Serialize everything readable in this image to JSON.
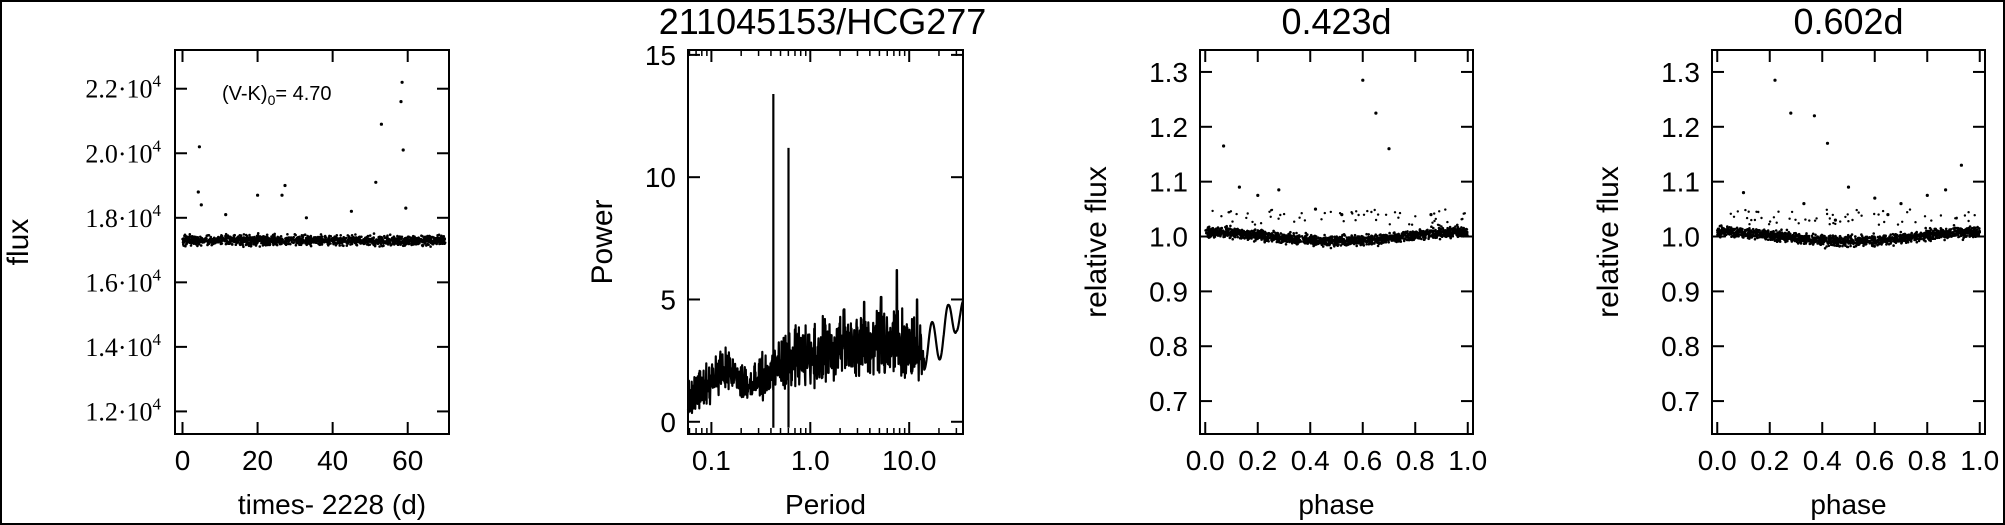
{
  "figure": {
    "background": "#ffffff",
    "ink": "#000000"
  },
  "chart_data": [
    {
      "type": "scatter",
      "title": "",
      "annotation": {
        "base": "(V-K)",
        "sub": "0",
        "rest": "= 4.70"
      },
      "xlabel": "times- 2228 (d)",
      "ylabel": "flux",
      "xlim": [
        -2,
        71
      ],
      "ylim": [
        11300,
        23200
      ],
      "xticks": [
        0,
        20,
        40,
        60
      ],
      "xtick_labels": [
        "0",
        "20",
        "40",
        "60"
      ],
      "yticks": [
        12000,
        14000,
        16000,
        18000,
        20000,
        22000
      ],
      "ytick_labels": [
        {
          "mant": "1.2·10",
          "exp": "4"
        },
        {
          "mant": "1.4·10",
          "exp": "4"
        },
        {
          "mant": "1.6·10",
          "exp": "4"
        },
        {
          "mant": "1.8·10",
          "exp": "4"
        },
        {
          "mant": "2.0·10",
          "exp": "4"
        },
        {
          "mant": "2.2·10",
          "exp": "4"
        }
      ],
      "baseline": {
        "x_range": [
          0,
          70
        ],
        "level": 17300,
        "scatter": 150
      },
      "outliers": [
        {
          "x": 4.5,
          "y": 20200
        },
        {
          "x": 4.2,
          "y": 18800
        },
        {
          "x": 5.0,
          "y": 18400
        },
        {
          "x": 11.5,
          "y": 18100
        },
        {
          "x": 20.0,
          "y": 18700
        },
        {
          "x": 26.5,
          "y": 18700
        },
        {
          "x": 27.3,
          "y": 19000
        },
        {
          "x": 45.0,
          "y": 18200
        },
        {
          "x": 51.5,
          "y": 19100
        },
        {
          "x": 58.5,
          "y": 22200
        },
        {
          "x": 58.2,
          "y": 21600
        },
        {
          "x": 58.8,
          "y": 20100
        },
        {
          "x": 53.0,
          "y": 20900
        },
        {
          "x": 59.5,
          "y": 18300
        },
        {
          "x": 33.0,
          "y": 18000
        }
      ]
    },
    {
      "type": "line",
      "title": "211045153/HCG277",
      "xlabel": "Period",
      "ylabel": "Power",
      "xscale": "log",
      "xlim": [
        0.058,
        35
      ],
      "ylim": [
        -0.5,
        15.2
      ],
      "xticks": [
        0.1,
        1.0,
        10.0
      ],
      "xtick_labels": [
        "0.1",
        "1.0",
        "10.0"
      ],
      "yticks": [
        0,
        5,
        10,
        15
      ],
      "ytick_labels": [
        "0",
        "5",
        "10",
        "15"
      ],
      "spikes": [
        {
          "x": 0.423,
          "y": 13.4
        },
        {
          "x": 0.602,
          "y": 11.2
        }
      ],
      "envelope": [
        {
          "x": 0.058,
          "y": 0.2
        },
        {
          "x": 0.08,
          "y": 0.8
        },
        {
          "x": 0.1,
          "y": 1.5
        },
        {
          "x": 0.13,
          "y": 2.0
        },
        {
          "x": 0.18,
          "y": 1.6
        },
        {
          "x": 0.25,
          "y": 1.0
        },
        {
          "x": 0.35,
          "y": 1.5
        },
        {
          "x": 0.5,
          "y": 2.2
        },
        {
          "x": 0.7,
          "y": 2.5
        },
        {
          "x": 1.0,
          "y": 2.8
        },
        {
          "x": 2.0,
          "y": 3.1
        },
        {
          "x": 4.0,
          "y": 3.4
        },
        {
          "x": 7.0,
          "y": 3.8
        },
        {
          "x": 10.0,
          "y": 3.2
        },
        {
          "x": 15.0,
          "y": 3.0
        },
        {
          "x": 20.0,
          "y": 3.4
        },
        {
          "x": 25.0,
          "y": 3.9
        },
        {
          "x": 30.0,
          "y": 4.6
        },
        {
          "x": 35.0,
          "y": 4.1
        }
      ],
      "peaks": [
        {
          "x": 7.5,
          "y": 6.2
        },
        {
          "x": 5.2,
          "y": 5.1
        },
        {
          "x": 3.5,
          "y": 4.9
        },
        {
          "x": 2.2,
          "y": 4.6
        },
        {
          "x": 12.0,
          "y": 5.0
        },
        {
          "x": 0.12,
          "y": 2.5
        },
        {
          "x": 0.72,
          "y": 3.3
        }
      ]
    },
    {
      "type": "scatter",
      "title": "0.423d",
      "xlabel": "phase",
      "ylabel": "relative flux",
      "xlim": [
        -0.02,
        1.02
      ],
      "ylim": [
        0.64,
        1.34
      ],
      "xticks": [
        0.0,
        0.2,
        0.4,
        0.6,
        0.8,
        1.0
      ],
      "xtick_labels": [
        "0.0",
        "0.2",
        "0.4",
        "0.6",
        "0.8",
        "1.0"
      ],
      "yticks": [
        0.7,
        0.8,
        0.9,
        1.0,
        1.1,
        1.2,
        1.3
      ],
      "ytick_labels": [
        "0.7",
        "0.8",
        "0.9",
        "1.0",
        "1.1",
        "1.2",
        "1.3"
      ],
      "baseline": {
        "x_range": [
          0,
          1
        ],
        "level": 1.0,
        "amplitude": 0.012,
        "scatter": 0.009
      },
      "outliers": [
        {
          "x": 0.07,
          "y": 1.165
        },
        {
          "x": 0.13,
          "y": 1.09
        },
        {
          "x": 0.2,
          "y": 1.075
        },
        {
          "x": 0.28,
          "y": 1.085
        },
        {
          "x": 0.42,
          "y": 1.05
        },
        {
          "x": 0.6,
          "y": 1.285
        },
        {
          "x": 0.65,
          "y": 1.225
        },
        {
          "x": 0.7,
          "y": 1.16
        },
        {
          "x": 0.52,
          "y": 1.04
        },
        {
          "x": 0.86,
          "y": 1.04
        }
      ]
    },
    {
      "type": "scatter",
      "title": "0.602d",
      "xlabel": "phase",
      "ylabel": "relative flux",
      "xlim": [
        -0.02,
        1.02
      ],
      "ylim": [
        0.64,
        1.34
      ],
      "xticks": [
        0.0,
        0.2,
        0.4,
        0.6,
        0.8,
        1.0
      ],
      "xtick_labels": [
        "0.0",
        "0.2",
        "0.4",
        "0.6",
        "0.8",
        "1.0"
      ],
      "yticks": [
        0.7,
        0.8,
        0.9,
        1.0,
        1.1,
        1.2,
        1.3
      ],
      "ytick_labels": [
        "0.7",
        "0.8",
        "0.9",
        "1.0",
        "1.1",
        "1.2",
        "1.3"
      ],
      "baseline": {
        "x_range": [
          0,
          1
        ],
        "level": 1.0,
        "amplitude": 0.012,
        "scatter": 0.009
      },
      "outliers": [
        {
          "x": 0.22,
          "y": 1.285
        },
        {
          "x": 0.28,
          "y": 1.225
        },
        {
          "x": 0.37,
          "y": 1.22
        },
        {
          "x": 0.42,
          "y": 1.17
        },
        {
          "x": 0.1,
          "y": 1.08
        },
        {
          "x": 0.33,
          "y": 1.06
        },
        {
          "x": 0.5,
          "y": 1.09
        },
        {
          "x": 0.6,
          "y": 1.07
        },
        {
          "x": 0.7,
          "y": 1.06
        },
        {
          "x": 0.8,
          "y": 1.075
        },
        {
          "x": 0.87,
          "y": 1.085
        },
        {
          "x": 0.93,
          "y": 1.13
        },
        {
          "x": 0.65,
          "y": 1.04
        },
        {
          "x": 0.45,
          "y": 1.03
        }
      ]
    }
  ]
}
